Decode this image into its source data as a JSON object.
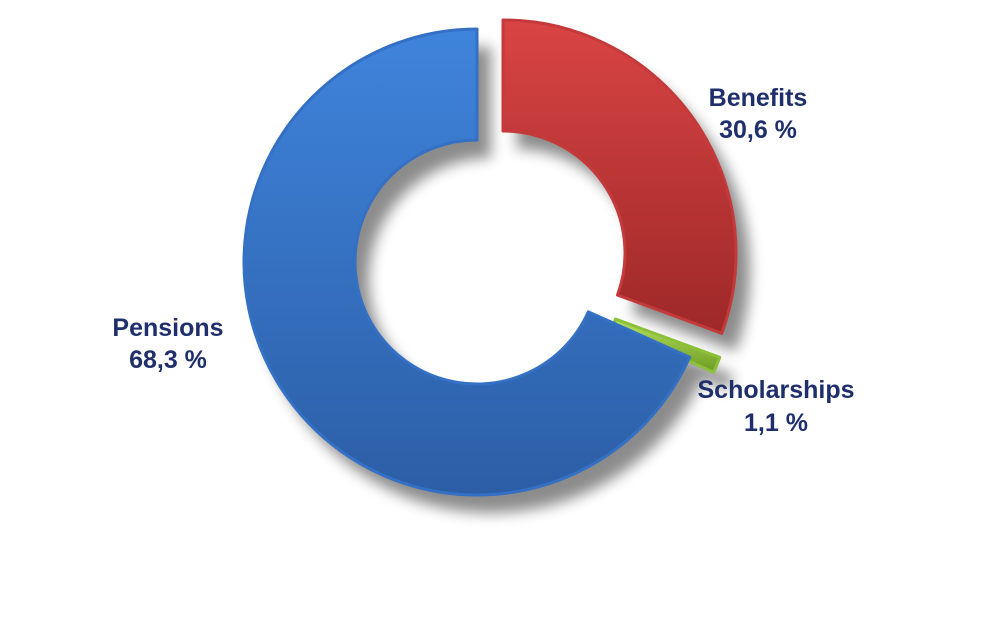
{
  "chart_data": {
    "type": "pie",
    "style": "donut",
    "exploded": true,
    "title": "",
    "legend": "none",
    "slices": [
      {
        "label": "Benefits",
        "value": 30.6,
        "value_label": "30,6 %",
        "color": "#c43a3a"
      },
      {
        "label": "Scholarships",
        "value": 1.1,
        "value_label": "1,1 %",
        "color": "#8cbf3a"
      },
      {
        "label": "Pensions",
        "value": 68.3,
        "value_label": "68,3 %",
        "color": "#3470c4"
      }
    ],
    "label_color": "#1f2f6b"
  }
}
